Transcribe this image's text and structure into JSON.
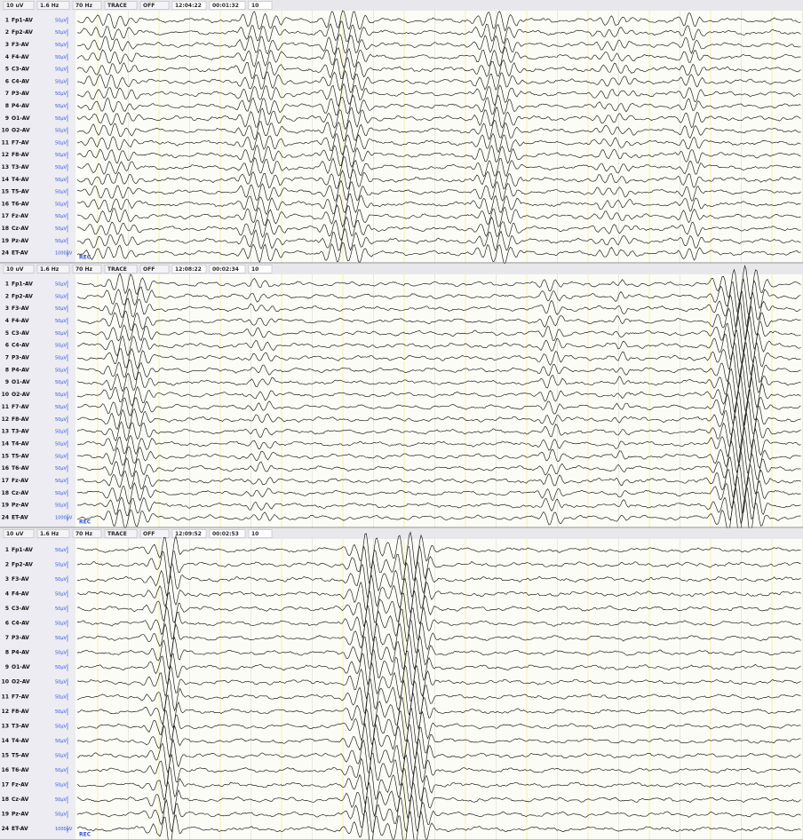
{
  "panels": [
    {
      "toolbar": {
        "sensitivity": "10 uV",
        "low_filter": "1.6 Hz",
        "high_filter": "70 Hz",
        "mode": "TRACE",
        "mode_state": "OFF",
        "clock": "12:04:22",
        "elapsed": "00:01:32",
        "page": "10"
      },
      "footer": "REC"
    },
    {
      "toolbar": {
        "sensitivity": "10 uV",
        "low_filter": "1.6 Hz",
        "high_filter": "70 Hz",
        "mode": "TRACE",
        "mode_state": "OFF",
        "clock": "12:08:22",
        "elapsed": "00:02:34",
        "page": "10"
      },
      "footer": "REC"
    },
    {
      "toolbar": {
        "sensitivity": "10 uV",
        "low_filter": "1.6 Hz",
        "high_filter": "70 Hz",
        "mode": "TRACE",
        "mode_state": "OFF",
        "clock": "12:09:52",
        "elapsed": "00:02:53",
        "page": "10"
      },
      "footer": "REC"
    }
  ],
  "channels": [
    {
      "number": "1",
      "label": "Fp1-AV",
      "scale": "50µV"
    },
    {
      "number": "2",
      "label": "Fp2-AV",
      "scale": "50µV"
    },
    {
      "number": "3",
      "label": "F3-AV",
      "scale": "50µV"
    },
    {
      "number": "4",
      "label": "F4-AV",
      "scale": "50µV"
    },
    {
      "number": "5",
      "label": "C3-AV",
      "scale": "50µV"
    },
    {
      "number": "6",
      "label": "C4-AV",
      "scale": "50µV"
    },
    {
      "number": "7",
      "label": "P3-AV",
      "scale": "50µV"
    },
    {
      "number": "8",
      "label": "P4-AV",
      "scale": "50µV"
    },
    {
      "number": "9",
      "label": "O1-AV",
      "scale": "50µV"
    },
    {
      "number": "10",
      "label": "O2-AV",
      "scale": "50µV"
    },
    {
      "number": "11",
      "label": "F7-AV",
      "scale": "50µV"
    },
    {
      "number": "12",
      "label": "F8-AV",
      "scale": "50µV"
    },
    {
      "number": "13",
      "label": "T3-AV",
      "scale": "50µV"
    },
    {
      "number": "14",
      "label": "T4-AV",
      "scale": "50µV"
    },
    {
      "number": "15",
      "label": "T5-AV",
      "scale": "50µV"
    },
    {
      "number": "16",
      "label": "T6-AV",
      "scale": "50µV"
    },
    {
      "number": "17",
      "label": "Fz-AV",
      "scale": "50µV"
    },
    {
      "number": "18",
      "label": "Cz-AV",
      "scale": "50µV"
    },
    {
      "number": "19",
      "label": "Pz-AV",
      "scale": "50µV"
    },
    {
      "number": "24",
      "label": "ET-AV",
      "scale": "1000µV"
    }
  ]
}
